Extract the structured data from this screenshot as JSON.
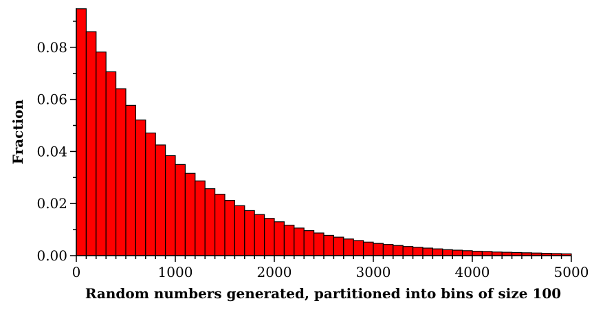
{
  "chart_data": {
    "type": "bar",
    "title": "",
    "xlabel": "Random numbers generated, partitioned into bins of size 100",
    "ylabel": "Fraction",
    "bin_size": 100,
    "xlim": [
      0,
      5000
    ],
    "ylim": [
      0,
      0.095
    ],
    "x_ticks": [
      0,
      1000,
      2000,
      3000,
      4000,
      5000
    ],
    "x_tick_labels": [
      "0",
      "1000",
      "2000",
      "3000",
      "4000",
      "5000"
    ],
    "y_ticks": [
      0,
      0.02,
      0.04,
      0.06,
      0.08
    ],
    "y_tick_labels": [
      "0.00",
      "0.02",
      "0.04",
      "0.06",
      "0.08"
    ],
    "bin_starts": [
      0,
      100,
      200,
      300,
      400,
      500,
      600,
      700,
      800,
      900,
      1000,
      1100,
      1200,
      1300,
      1400,
      1500,
      1600,
      1700,
      1800,
      1900,
      2000,
      2100,
      2200,
      2300,
      2400,
      2500,
      2600,
      2700,
      2800,
      2900,
      3000,
      3100,
      3200,
      3300,
      3400,
      3500,
      3600,
      3700,
      3800,
      3900,
      4000,
      4100,
      4200,
      4300,
      4400,
      4500,
      4600,
      4700,
      4800,
      4900
    ],
    "values": [
      0.0948,
      0.086,
      0.0782,
      0.0706,
      0.0641,
      0.0577,
      0.0521,
      0.0471,
      0.0425,
      0.0384,
      0.035,
      0.0316,
      0.0287,
      0.0257,
      0.0236,
      0.0212,
      0.0192,
      0.0173,
      0.0158,
      0.0143,
      0.013,
      0.0117,
      0.0106,
      0.0096,
      0.0087,
      0.0078,
      0.0071,
      0.0064,
      0.0058,
      0.0052,
      0.0047,
      0.0043,
      0.0039,
      0.0035,
      0.0032,
      0.0029,
      0.0026,
      0.0023,
      0.0021,
      0.0019,
      0.0017,
      0.0016,
      0.0014,
      0.0013,
      0.0012,
      0.0011,
      0.001,
      0.0009,
      0.0008,
      0.0007
    ],
    "bar_color": "#ff0000",
    "edge_color": "#000000",
    "grid": false,
    "legend": "none"
  }
}
